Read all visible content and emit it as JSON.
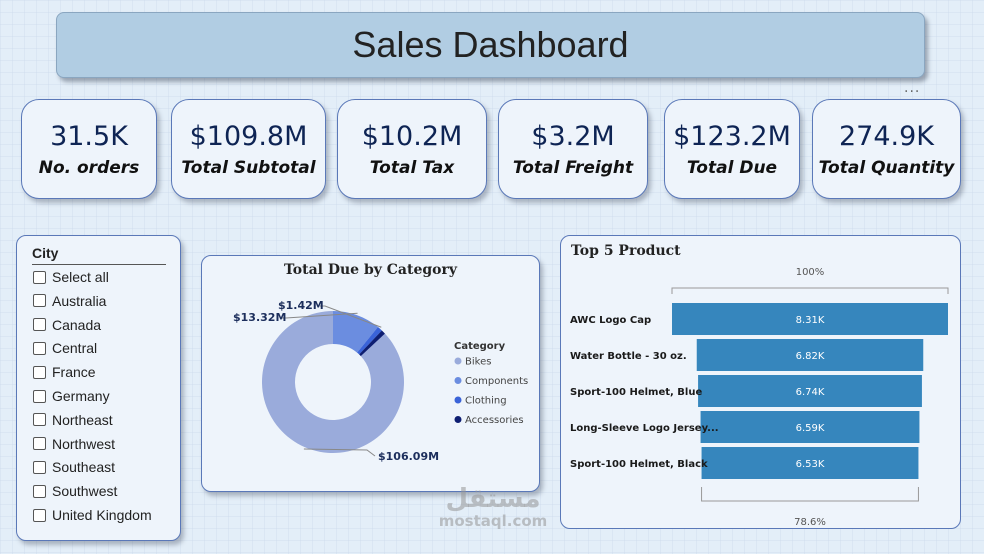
{
  "title": "Sales Dashboard",
  "more_options": "...",
  "kpis": [
    {
      "value": "31.5K",
      "label": "No. orders"
    },
    {
      "value": "$109.8M",
      "label": "Total Subtotal"
    },
    {
      "value": "$10.2M",
      "label": "Total Tax"
    },
    {
      "value": "$3.2M",
      "label": "Total Freight"
    },
    {
      "value": "$123.2M",
      "label": "Total Due"
    },
    {
      "value": "274.9K",
      "label": "Total Quantity"
    }
  ],
  "city_slicer": {
    "title": "City",
    "items": [
      "Select all",
      "Australia",
      "Canada",
      "Central",
      "France",
      "Germany",
      "Northeast",
      "Northwest",
      "Southeast",
      "Southwest",
      "United Kingdom"
    ]
  },
  "watermark": {
    "arabic": "مستقل",
    "latin": "mostaql.com"
  },
  "chart_data": [
    {
      "type": "pie",
      "title": "Total Due by Category",
      "legend_title": "Category",
      "legend_placement": "right",
      "categories": [
        "Bikes",
        "Components",
        "Clothing",
        "Accessories"
      ],
      "values": [
        106.09,
        13.32,
        1.42,
        1.2
      ],
      "data_labels": [
        "$106.09M",
        "$13.32M",
        "$1.42M",
        ""
      ],
      "colors": [
        "#9aabdb",
        "#6b8de0",
        "#3a63d8",
        "#0e1e72"
      ]
    },
    {
      "type": "bar",
      "title": "Top 5 Product",
      "categories": [
        "AWC Logo Cap",
        "Water Bottle - 30 oz.",
        "Sport-100 Helmet, Blue",
        "Long-Sleeve Logo Jersey...",
        "Sport-100 Helmet, Black"
      ],
      "values": [
        8.31,
        6.82,
        6.74,
        6.59,
        6.53
      ],
      "data_labels": [
        "8.31K",
        "6.82K",
        "6.74K",
        "6.59K",
        "6.53K"
      ],
      "top_percent_label": "100%",
      "bottom_percent_label": "78.6%",
      "color": "#3686bd"
    }
  ]
}
